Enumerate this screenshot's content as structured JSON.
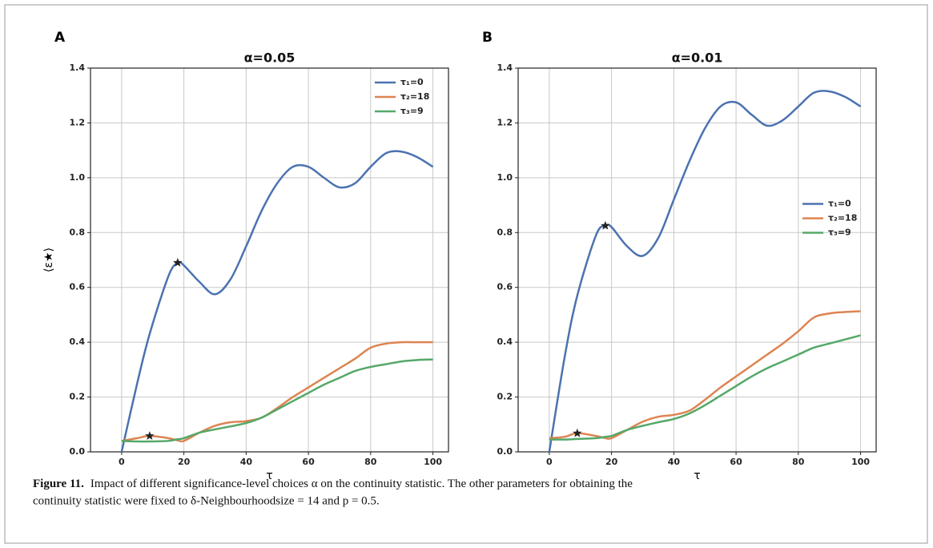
{
  "chart_data": [
    {
      "type": "line",
      "panel": "A",
      "title": "α=0.05",
      "xlabel": "τ",
      "ylabel": "⟨ε★⟩",
      "x": [
        0,
        5,
        9,
        15,
        18,
        20,
        25,
        30,
        35,
        40,
        45,
        50,
        55,
        60,
        65,
        70,
        75,
        80,
        85,
        90,
        95,
        100
      ],
      "series": [
        {
          "name": "τ₁=0",
          "color": "#4c72b0",
          "values": [
            0,
            0.25,
            0.43,
            0.64,
            0.69,
            0.68,
            0.62,
            0.575,
            0.63,
            0.75,
            0.88,
            0.98,
            1.04,
            1.04,
            1.0,
            0.965,
            0.98,
            1.04,
            1.09,
            1.095,
            1.075,
            1.04
          ]
        },
        {
          "name": "τ₂=18",
          "color": "#dd8452",
          "values": [
            0.04,
            0.05,
            0.058,
            0.05,
            0.042,
            0.04,
            0.07,
            0.095,
            0.108,
            0.112,
            0.125,
            0.16,
            0.2,
            0.235,
            0.27,
            0.305,
            0.34,
            0.38,
            0.395,
            0.4,
            0.4,
            0.4
          ]
        },
        {
          "name": "τ₃=9",
          "color": "#55a868",
          "values": [
            0.04,
            0.038,
            0.038,
            0.04,
            0.046,
            0.05,
            0.07,
            0.082,
            0.093,
            0.105,
            0.125,
            0.155,
            0.185,
            0.215,
            0.245,
            0.27,
            0.295,
            0.31,
            0.32,
            0.33,
            0.335,
            0.337
          ]
        }
      ],
      "markers": [
        {
          "x": 18,
          "y": 0.69
        },
        {
          "x": 9,
          "y": 0.058
        }
      ],
      "marker_color": "#222",
      "xlim": [
        -10,
        105
      ],
      "ylim": [
        0,
        1.4
      ],
      "xticks": [
        0,
        20,
        40,
        60,
        80,
        100
      ],
      "yticks": [
        {
          "value": 0,
          "label": "0.0"
        },
        0.2,
        0.4,
        0.6,
        0.8,
        {
          "value": 1,
          "label": "1.0"
        },
        1.2,
        1.4
      ],
      "grid": true,
      "legend": "upper right"
    },
    {
      "type": "line",
      "panel": "B",
      "title": "α=0.01",
      "xlabel": "τ",
      "x": [
        0,
        5,
        9,
        15,
        18,
        20,
        25,
        30,
        35,
        40,
        45,
        50,
        55,
        60,
        65,
        70,
        75,
        80,
        85,
        90,
        95,
        100
      ],
      "series": [
        {
          "name": "τ₁=0",
          "color": "#4c72b0",
          "values": [
            0,
            0.35,
            0.57,
            0.79,
            0.825,
            0.82,
            0.75,
            0.715,
            0.78,
            0.92,
            1.06,
            1.18,
            1.26,
            1.275,
            1.23,
            1.19,
            1.21,
            1.26,
            1.31,
            1.315,
            1.295,
            1.26
          ]
        },
        {
          "name": "τ₂=18",
          "color": "#dd8452",
          "values": [
            0.05,
            0.055,
            0.068,
            0.058,
            0.05,
            0.05,
            0.08,
            0.11,
            0.128,
            0.135,
            0.15,
            0.19,
            0.235,
            0.275,
            0.315,
            0.355,
            0.395,
            0.44,
            0.49,
            0.505,
            0.51,
            0.513
          ]
        },
        {
          "name": "τ₃=9",
          "color": "#55a868",
          "values": [
            0.045,
            0.045,
            0.047,
            0.05,
            0.055,
            0.058,
            0.08,
            0.095,
            0.108,
            0.12,
            0.14,
            0.17,
            0.205,
            0.24,
            0.275,
            0.305,
            0.33,
            0.355,
            0.38,
            0.395,
            0.41,
            0.425
          ]
        }
      ],
      "markers": [
        {
          "x": 18,
          "y": 0.825
        },
        {
          "x": 9,
          "y": 0.068
        }
      ],
      "marker_color": "#222",
      "xlim": [
        -10,
        105
      ],
      "ylim": [
        0,
        1.4
      ],
      "xticks": [
        0,
        20,
        40,
        60,
        80,
        100
      ],
      "yticks": [
        {
          "value": 0,
          "label": "0.0"
        },
        0.2,
        0.4,
        0.6,
        0.8,
        {
          "value": 1,
          "label": "1.0"
        },
        1.2,
        1.4
      ],
      "grid": true,
      "legend": "center right"
    }
  ],
  "caption": {
    "label": "Figure 11.",
    "line1": "Impact of different significance-level choices α on the continuity statistic. The other parameters for obtaining the",
    "line2": "continuity statistic were fixed to δ-Neighbourhoodsize = 14 and p = 0.5."
  }
}
